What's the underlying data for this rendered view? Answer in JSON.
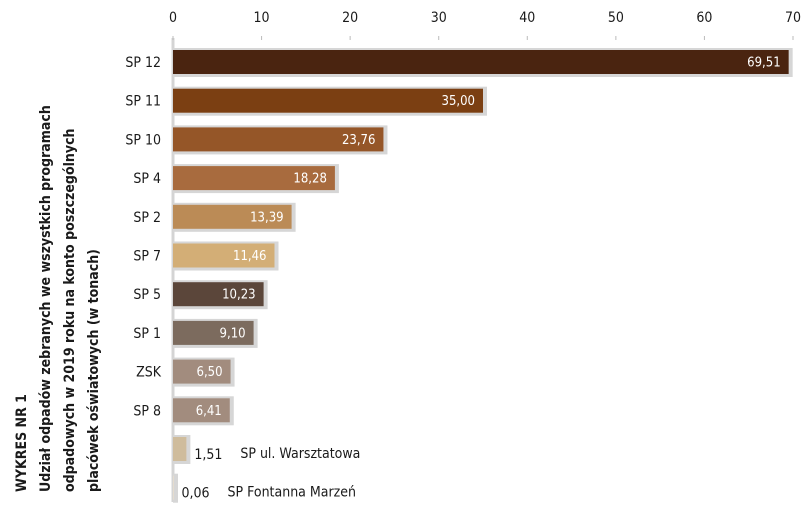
{
  "chart_data": {
    "type": "bar",
    "orientation": "horizontal",
    "title": "WYKRES NR 1",
    "subtitle": [
      "Udział odpadów zebranych we wszystkich programach",
      "odpadowych w 2019 roku na konto poszczególnych",
      "placówek oświatowych (w tonach)"
    ],
    "categories": [
      "SP 12",
      "SP 11",
      "SP 10",
      "SP 4",
      "SP 2",
      "SP 7",
      "SP 5",
      "SP 1",
      "ZSK",
      "SP 8",
      "SP ul. Warsztatowa",
      "SP Fontanna Marzeń"
    ],
    "values": [
      69.51,
      35.0,
      23.76,
      18.28,
      13.39,
      11.46,
      10.23,
      9.1,
      6.5,
      6.41,
      1.51,
      0.06
    ],
    "value_labels": [
      "69,51",
      "35,00",
      "23,76",
      "18,28",
      "13,39",
      "11,46",
      "10,23",
      "9,10",
      "6,50",
      "6,41",
      "1,51",
      "0,06"
    ],
    "colors": [
      "#4a2410",
      "#7b3f12",
      "#955628",
      "#a86b3e",
      "#bb8b56",
      "#d3ae76",
      "#5b463a",
      "#7c6b5e",
      "#a28c7e",
      "#a28c7e",
      "#cfbc9c",
      "#e4dccf"
    ],
    "xlim": [
      0,
      70
    ],
    "xticks": [
      0,
      10,
      20,
      30,
      40,
      50,
      60,
      70
    ],
    "grid": false
  }
}
